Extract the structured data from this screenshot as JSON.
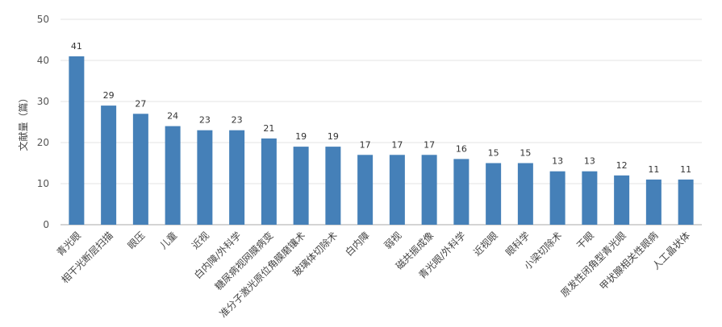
{
  "chart_data": {
    "type": "bar",
    "title": "",
    "xlabel": "",
    "ylabel": "文献量（篇）",
    "ylim": [
      0,
      50
    ],
    "yticks": [
      0,
      10,
      20,
      30,
      40,
      50
    ],
    "grid": true,
    "legend": "none",
    "bar_color": "#4580b8",
    "categories": [
      "青光眼",
      "相干光断层扫描",
      "眼压",
      "儿童",
      "近视",
      "白内障/外科学",
      "糖尿病视网膜病变",
      "准分子激光原位角膜磨镶术",
      "玻璃体切除术",
      "白内障",
      "弱视",
      "磁共振成像",
      "青光眼/外科学",
      "近视眼",
      "眼科学",
      "小梁切除术",
      "干眼",
      "原发性闭角型青光眼",
      "甲状腺相关性眼病",
      "人工晶状体"
    ],
    "values": [
      41,
      29,
      27,
      24,
      23,
      23,
      21,
      19,
      19,
      17,
      17,
      17,
      16,
      15,
      15,
      13,
      13,
      12,
      11,
      11
    ]
  }
}
